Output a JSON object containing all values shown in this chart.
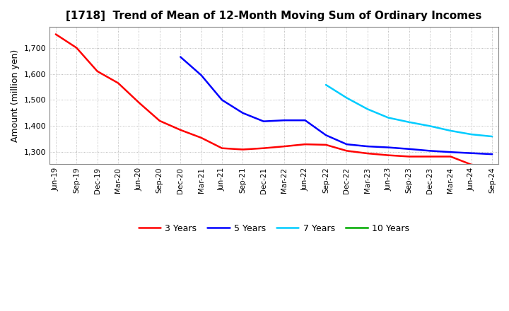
{
  "title": "[1718]  Trend of Mean of 12-Month Moving Sum of Ordinary Incomes",
  "ylabel": "Amount (million yen)",
  "background_color": "#ffffff",
  "plot_bg_color": "#ffffff",
  "grid_color": "#aaaaaa",
  "ylim": [
    1255,
    1780
  ],
  "yticks": [
    1300,
    1400,
    1500,
    1600,
    1700
  ],
  "legend": [
    "3 Years",
    "5 Years",
    "7 Years",
    "10 Years"
  ],
  "legend_colors": [
    "#ff0000",
    "#0000ff",
    "#00ccff",
    "#00aa00"
  ],
  "x_labels": [
    "Jun-19",
    "Sep-19",
    "Dec-19",
    "Mar-20",
    "Jun-20",
    "Sep-20",
    "Dec-20",
    "Mar-21",
    "Jun-21",
    "Sep-21",
    "Dec-21",
    "Mar-22",
    "Jun-22",
    "Sep-22",
    "Dec-22",
    "Mar-23",
    "Jun-23",
    "Sep-23",
    "Dec-23",
    "Mar-24",
    "Jun-24",
    "Sep-24"
  ],
  "series_3yr": {
    "x_indices": [
      0,
      1,
      2,
      3,
      4,
      5,
      6,
      7,
      8,
      9,
      10,
      11,
      12,
      13,
      14,
      15,
      16,
      17,
      18,
      19,
      20,
      21
    ],
    "y": [
      1752,
      1700,
      1610,
      1565,
      1490,
      1420,
      1385,
      1355,
      1315,
      1310,
      1315,
      1322,
      1330,
      1328,
      1305,
      1295,
      1288,
      1283,
      1283,
      1283,
      1252,
      1242
    ]
  },
  "series_5yr": {
    "x_indices": [
      6,
      7,
      8,
      9,
      10,
      11,
      12,
      13,
      14,
      15,
      16,
      17,
      18,
      19,
      20,
      21
    ],
    "y": [
      1665,
      1595,
      1500,
      1450,
      1418,
      1422,
      1422,
      1365,
      1330,
      1322,
      1318,
      1312,
      1305,
      1300,
      1296,
      1292
    ]
  },
  "series_7yr": {
    "x_indices": [
      13,
      14,
      15,
      16,
      17,
      18,
      19,
      20,
      21
    ],
    "y": [
      1558,
      1508,
      1465,
      1432,
      1415,
      1400,
      1382,
      1368,
      1360
    ]
  },
  "series_10yr": {
    "x_indices": [],
    "y": []
  },
  "line_width": 1.8,
  "title_fontsize": 11,
  "axis_label_fontsize": 9,
  "tick_fontsize": 7.5,
  "legend_fontsize": 9
}
